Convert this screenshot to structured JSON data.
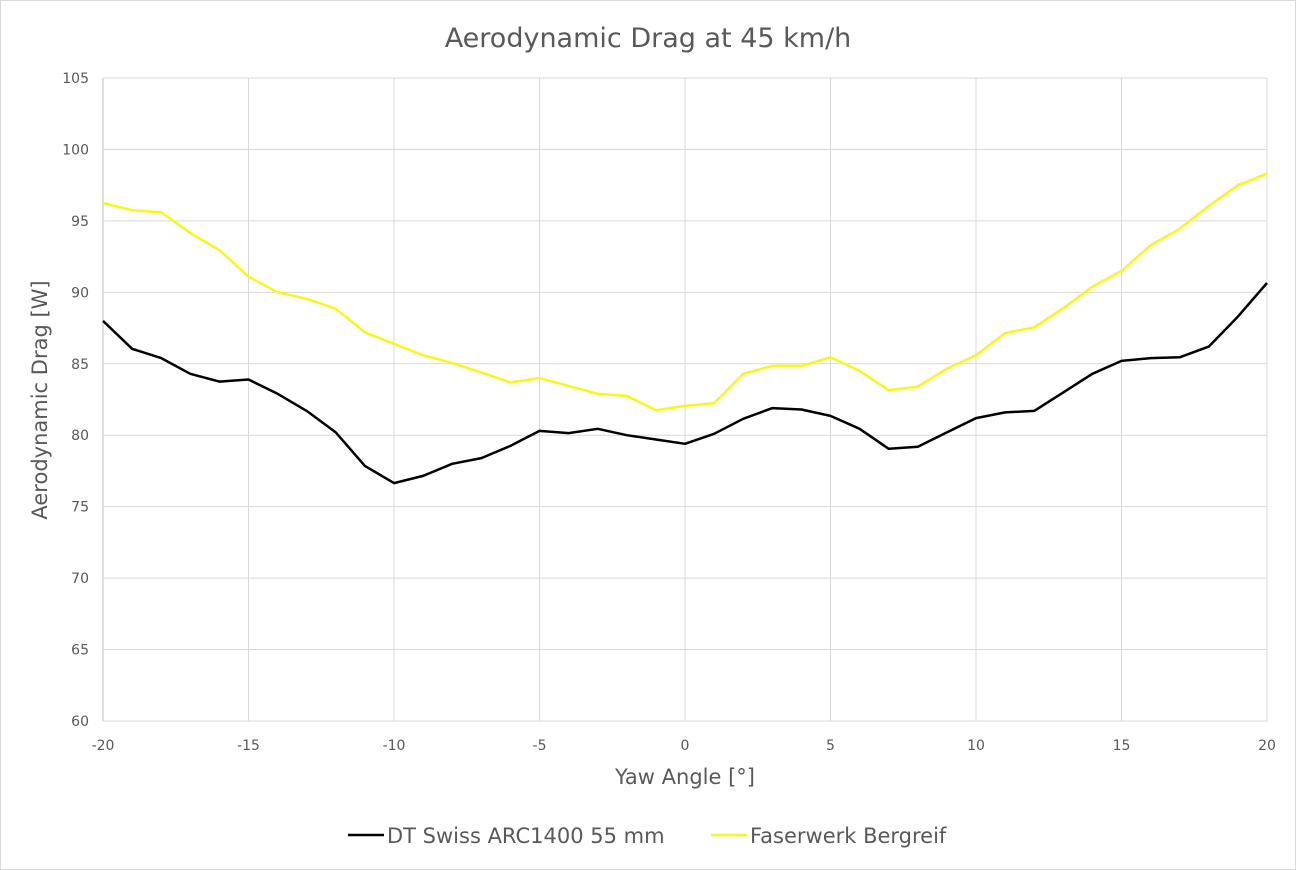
{
  "chart_data": {
    "type": "line",
    "title": "Aerodynamic Drag at 45 km/h",
    "xlabel": "Yaw Angle [°]",
    "ylabel": "Aerodynamic Drag [W]",
    "xlim": [
      -20,
      20
    ],
    "ylim": [
      60,
      105
    ],
    "xticks": [
      -20,
      -15,
      -10,
      -5,
      0,
      5,
      10,
      15,
      20
    ],
    "yticks": [
      60,
      65,
      70,
      75,
      80,
      85,
      90,
      95,
      100,
      105
    ],
    "grid": true,
    "legend_position": "bottom",
    "x": [
      -20,
      -19,
      -18,
      -17,
      -16,
      -15,
      -14,
      -13,
      -12,
      -11,
      -10,
      -9,
      -8,
      -7,
      -6,
      -5,
      -4,
      -3,
      -2,
      -1,
      0,
      1,
      2,
      3,
      4,
      5,
      6,
      7,
      8,
      9,
      10,
      11,
      12,
      13,
      14,
      15,
      16,
      17,
      18,
      19,
      20
    ],
    "series": [
      {
        "name": "DT Swiss ARC1400 55 mm",
        "color": "#000000",
        "values": [
          88.0,
          86.05,
          85.4,
          84.3,
          83.75,
          83.9,
          82.9,
          81.7,
          80.2,
          77.85,
          76.65,
          77.15,
          78.0,
          78.4,
          79.25,
          80.3,
          80.15,
          80.45,
          80.0,
          79.7,
          79.4,
          80.1,
          81.15,
          81.9,
          81.8,
          81.35,
          80.45,
          79.05,
          79.2,
          80.2,
          81.2,
          81.6,
          81.7,
          83.0,
          84.3,
          85.2,
          85.4,
          85.45,
          86.2,
          88.3,
          90.65
        ]
      },
      {
        "name": "Faserwerk Bergreif",
        "color": "#f7f71c",
        "values": [
          96.25,
          95.75,
          95.6,
          94.15,
          92.95,
          91.1,
          90.0,
          89.55,
          88.85,
          87.2,
          86.4,
          85.6,
          85.05,
          84.4,
          83.7,
          84.0,
          83.45,
          82.9,
          82.75,
          81.75,
          82.05,
          82.25,
          84.3,
          84.85,
          84.85,
          85.45,
          84.5,
          83.15,
          83.4,
          84.65,
          85.6,
          87.15,
          87.55,
          88.9,
          90.4,
          91.5,
          93.3,
          94.45,
          96.05,
          97.5,
          98.3
        ]
      }
    ]
  }
}
